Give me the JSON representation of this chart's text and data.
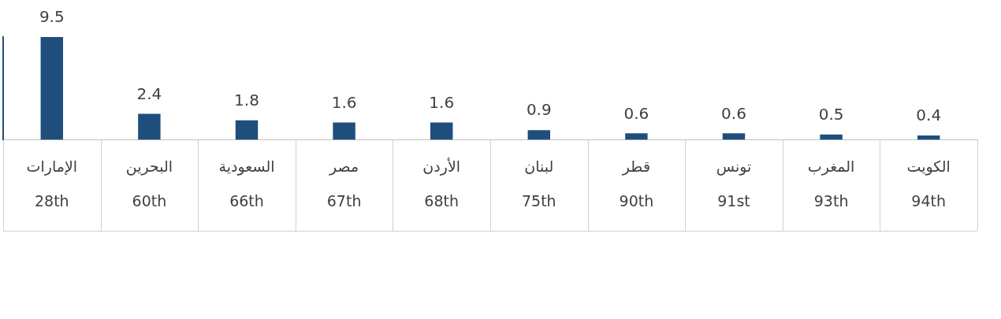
{
  "chart_data": {
    "type": "bar",
    "categories": [
      "الإمارات\n28th",
      "البحرين\n60th",
      "السعودية\n66th",
      "مصر\n67th",
      "الأردن\n68th",
      "لبنان\n75th",
      "قطر\n90th",
      "تونس\n91st",
      "المغرب\n93th",
      "الكويت\n94th"
    ],
    "values": [
      9.5,
      2.4,
      1.8,
      1.6,
      1.6,
      0.9,
      0.6,
      0.6,
      0.5,
      0.4
    ],
    "color": "#1f4e7c",
    "data_labels": true,
    "legend": false
  }
}
